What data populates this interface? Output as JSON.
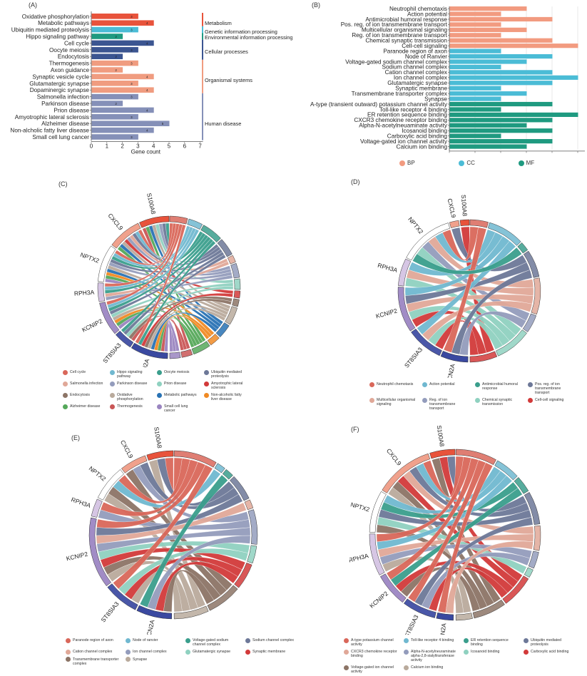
{
  "panels": {
    "a": "(A)",
    "b": "(B)",
    "c": "(C)",
    "d": "(D)",
    "e": "(E)",
    "f": "(F)"
  },
  "category_colors": {
    "Metabolism": "#e8533b",
    "Genetic information processing": "#4bbcd6",
    "Environmental information processing": "#1f9a80",
    "Cellular processes": "#3b5591",
    "Organismal systems": "#f09c80",
    "Human disease": "#8590b8"
  },
  "go_colors": {
    "BP": "#f29b80",
    "CC": "#4bbcd6",
    "MF": "#1f9a80"
  },
  "chart_data": [
    {
      "id": "A",
      "type": "bar",
      "orientation": "horizontal",
      "title": "",
      "xlabel": "Gene count",
      "ylabel": "",
      "xlim": [
        0,
        7
      ],
      "xticks": [
        "0",
        "1",
        "2",
        "3",
        "4",
        "5",
        "6",
        "7"
      ],
      "grid": false,
      "categories": [
        "Oxidative phosphorylation",
        "Metabolic pathways",
        "Ubiquitin mediated proteolysis",
        "Hippo signaling pathway",
        "Cell cycle",
        "Oocyte meiosis",
        "Endocytosis",
        "Thermogenesis",
        "Axon guidance",
        "Synaptic vesicle cycle",
        "Glutamatergic synapse",
        "Dopaminergic synapse",
        "Salmonella infection",
        "Parkinson disease",
        "Prion disease",
        "Amyotrophic lateral sclerosis",
        "Alzheimer disease",
        "Non-alcholic fatty liver disease",
        "Small cell lung cancer"
      ],
      "values": [
        3,
        4,
        3,
        2,
        4,
        3,
        2,
        3,
        2,
        4,
        3,
        4,
        3,
        2,
        4,
        3,
        5,
        4,
        3
      ],
      "groups": [
        "Metabolism",
        "Metabolism",
        "Genetic information processing",
        "Environmental information processing",
        "Cellular processes",
        "Cellular processes",
        "Cellular processes",
        "Organismal systems",
        "Organismal systems",
        "Organismal systems",
        "Organismal systems",
        "Organismal systems",
        "Human disease",
        "Human disease",
        "Human disease",
        "Human disease",
        "Human disease",
        "Human disease",
        "Human disease"
      ],
      "group_labels": [
        "Metabolism",
        "Genetic information processing",
        "Environmental information processing",
        "Cellular processes",
        "Organismal systems",
        "Human disease"
      ]
    },
    {
      "id": "B",
      "type": "bar",
      "orientation": "horizontal",
      "title": "",
      "xlabel": "",
      "ylabel": "",
      "xlim": [
        0,
        5
      ],
      "grid": true,
      "legend": {
        "position": "bottom",
        "entries": [
          "BP",
          "CC",
          "MF"
        ]
      },
      "categories": [
        "Neutrophil chemotaxis",
        "Action potential",
        "Antimicrobial humoral response",
        "Pos. reg. of ion transmembrane transport",
        "Multicellular organismal signaling",
        "Reg. of ion transmembrane transport",
        "Chemical synaptic transmission",
        "Cell-cell signaling",
        "Paranode region of axon",
        "Node of Ranvier",
        "Voltage-gated sodium channel complex",
        "Sodium channel complex",
        "Cation channel complex",
        "Ion channel complex",
        "Glutamatergic synapse",
        "Synaptic membrane",
        "Transmembrane transporter complex",
        "Synapse",
        "A-type (transient outward) potassium channel activity",
        "Toll-like receptor 4 binding",
        "ER retention sequence binding",
        "CXCR3 chemokine receptor binding",
        "Alpha-N-acetylneuaminate activity",
        "Icosanoid binding",
        "Carboxylic acid binding",
        "Voltage-gated ion channel activity",
        "Calcium ion binding"
      ],
      "values": [
        3,
        2,
        4,
        2,
        3,
        2,
        4,
        5,
        2,
        4,
        3,
        2,
        4,
        5,
        4,
        2,
        3,
        2,
        4,
        2,
        5,
        4,
        3,
        4,
        2,
        4,
        3
      ],
      "groups": [
        "BP",
        "BP",
        "BP",
        "BP",
        "BP",
        "BP",
        "BP",
        "BP",
        "CC",
        "CC",
        "CC",
        "CC",
        "CC",
        "CC",
        "CC",
        "CC",
        "CC",
        "CC",
        "MF",
        "MF",
        "MF",
        "MF",
        "MF",
        "MF",
        "MF",
        "MF",
        "MF"
      ]
    },
    {
      "id": "C",
      "type": "chord",
      "genes": [
        "S100A8",
        "CXCL9",
        "NPTX2",
        "RPH3A",
        "KCNIP2",
        "ST8SIA3",
        "SCN2A"
      ],
      "gene_colors": [
        "#e8533b",
        "#f0a18c",
        "#ffffff",
        "#d6c6e4",
        "#a18cc6",
        "#4a57a8",
        "#3a49a0"
      ],
      "terms": [
        "Cell cycle",
        "Hippo signaling pathway",
        "Oocyte meiosis",
        "Ubiquitin mediated proteolysis",
        "Salmonella infection",
        "Parkinson disease",
        "Prion disease",
        "Amyotrophic lateral sclerosis",
        "Endocytosis",
        "Oxidative phosphorylation",
        "Metabolic pathways",
        "Non-alcoholic fatty liver disease",
        "Alzheimer disease",
        "Thermogenesis",
        "Small cell lung cancer"
      ],
      "term_colors": [
        "#d9675a",
        "#70b8d0",
        "#3a9e8c",
        "#6d7898",
        "#e0a898",
        "#939cbc",
        "#8fd1c0",
        "#d23a3a",
        "#8c7466",
        "#b9aa9c",
        "#2872b4",
        "#f08a24",
        "#55a85a",
        "#c95656",
        "#9a85c0"
      ]
    },
    {
      "id": "D",
      "type": "chord",
      "genes": [
        "S100A8",
        "CXCL9",
        "NPTX2",
        "RPH3A",
        "KCNIP2",
        "ST8SIA3",
        "SCN2A"
      ],
      "gene_colors": [
        "#e8533b",
        "#f0a18c",
        "#ffffff",
        "#d6c6e4",
        "#a18cc6",
        "#4a57a8",
        "#3a49a0"
      ],
      "terms": [
        "Neutrophil chemotaxis",
        "Action potential",
        "Antimicrobial humoral response",
        "Pos. reg. of ion transmembrane transport",
        "Multicellular organismal signaling",
        "Reg. of ion transmembrane transport",
        "Chemical synaptic transmission",
        "Cell-cell signaling"
      ],
      "term_colors": [
        "#d9675a",
        "#70b8d0",
        "#3a9e8c",
        "#6d7898",
        "#e0a898",
        "#939cbc",
        "#8fd1c0",
        "#d23a3a"
      ]
    },
    {
      "id": "E",
      "type": "chord",
      "genes": [
        "S100A8",
        "CXCL9",
        "NPTX2",
        "RPH3A",
        "KCNIP2",
        "ST8SIA3",
        "SCN2A"
      ],
      "gene_colors": [
        "#e8533b",
        "#f0a18c",
        "#ffffff",
        "#d6c6e4",
        "#a18cc6",
        "#4a57a8",
        "#3a49a0"
      ],
      "terms": [
        "Paranode region of axon",
        "Node of ranvier",
        "Voltage-gated sodium channel complex",
        "Sodium channel complex",
        "Cation channel complex",
        "Ion channel complex",
        "Glutamatergic synapse",
        "Synaptic membrane",
        "Transmembrane transporter complex",
        "Synapse"
      ],
      "term_colors": [
        "#d9675a",
        "#70b8d0",
        "#3a9e8c",
        "#6d7898",
        "#e0a898",
        "#939cbc",
        "#8fd1c0",
        "#d23a3a",
        "#8c7466",
        "#b9aa9c"
      ]
    },
    {
      "id": "F",
      "type": "chord",
      "genes": [
        "S100A8",
        "CXCL9",
        "NPTX2",
        "RPH3A",
        "KCNIP2",
        "ST8SIA3",
        "SCN2A"
      ],
      "gene_colors": [
        "#e8533b",
        "#f0a18c",
        "#ffffff",
        "#d6c6e4",
        "#a18cc6",
        "#4a57a8",
        "#3a49a0"
      ],
      "terms": [
        "A-type potassium channel activity",
        "Toll-like receptor 4 binding",
        "ER retention sequence binding",
        "Ubiquitin mediated proteolysis",
        "CXCR3 chemokine receptor binding",
        "Alpha-N-acetylneuraminate alpha-2,8-sialyltransferase activity",
        "Icosanoid binding",
        "Carboxylic acid binding",
        "Voltage-gated ion channel activity",
        "Calcium ion binding"
      ],
      "term_colors": [
        "#d9675a",
        "#70b8d0",
        "#3a9e8c",
        "#6d7898",
        "#e0a898",
        "#939cbc",
        "#8fd1c0",
        "#d23a3a",
        "#8c7466",
        "#b9aa9c"
      ]
    }
  ]
}
